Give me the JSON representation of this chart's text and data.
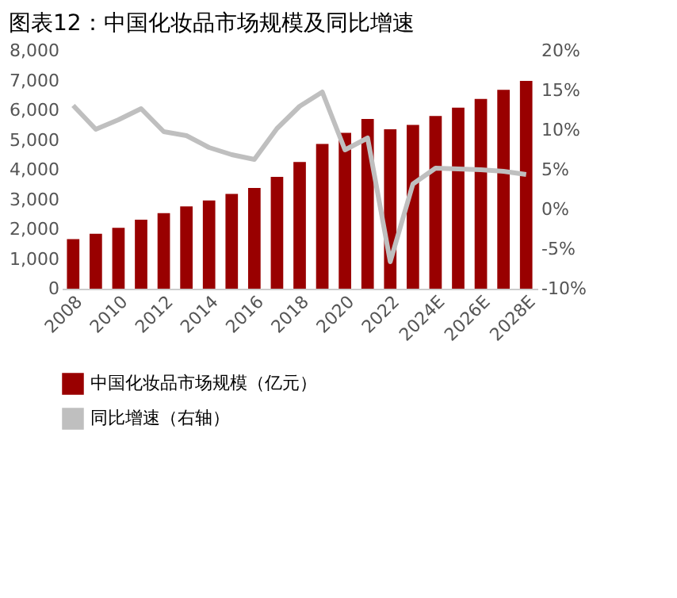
{
  "chart_data": {
    "type": "bar",
    "title": "图表12：中国化妆品市场规模及同比增速",
    "categories": [
      "2008",
      null,
      "2010",
      null,
      "2012",
      null,
      "2014",
      null,
      "2016",
      null,
      "2018",
      null,
      "2020",
      null,
      "2022",
      null,
      "2024E",
      null,
      "2026E",
      null,
      "2028E"
    ],
    "series": [
      {
        "name": "中国化妆品市场规模（亿元）",
        "color": "#990000",
        "values": [
          1670,
          1850,
          2050,
          2320,
          2540,
          2770,
          2970,
          3190,
          3390,
          3760,
          4260,
          4870,
          5240,
          5710,
          5360,
          5510,
          5810,
          6090,
          6380,
          6690,
          6990
        ]
      },
      {
        "name": "同比增速（右轴）",
        "type": "line",
        "axis": "y2",
        "color": "#bfbfbf",
        "values": [
          13.1,
          10.1,
          11.3,
          12.7,
          9.8,
          9.3,
          7.8,
          6.9,
          6.3,
          10.2,
          13.0,
          14.8,
          7.5,
          9.0,
          -6.6,
          3.2,
          5.2,
          5.1,
          5.0,
          4.8,
          4.4
        ]
      }
    ],
    "ylim": [
      0,
      8000
    ],
    "yticks": [
      0,
      {
        "value": 1000,
        "label": "1,000"
      },
      {
        "value": 2000,
        "label": "2,000"
      },
      {
        "value": 3000,
        "label": "3,000"
      },
      {
        "value": 4000,
        "label": "4,000"
      },
      {
        "value": 5000,
        "label": "5,000"
      },
      {
        "value": 6000,
        "label": "6,000"
      },
      {
        "value": 7000,
        "label": "7,000"
      },
      {
        "value": 8000,
        "label": "8,000"
      }
    ],
    "y2lim": [
      -10,
      20
    ],
    "y2ticks": [
      {
        "value": -10,
        "label": "-10%"
      },
      {
        "value": -5,
        "label": "-5%"
      },
      {
        "value": 0,
        "label": "0%"
      },
      {
        "value": 5,
        "label": "5%"
      },
      {
        "value": 10,
        "label": "10%"
      },
      {
        "value": 15,
        "label": "15%"
      },
      {
        "value": 20,
        "label": "20%"
      }
    ],
    "legend": "bottom"
  }
}
